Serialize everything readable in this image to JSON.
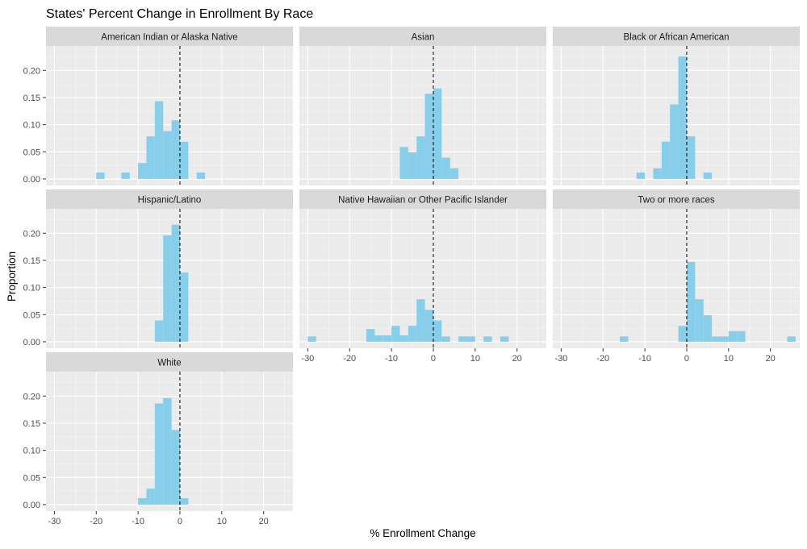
{
  "chart_data": {
    "type": "histogram",
    "title": "States' Percent Change in Enrollment By Race",
    "xlabel": "% Enrollment Change",
    "ylabel": "Proportion",
    "xlim": [
      -32,
      27
    ],
    "ylim": [
      -0.012,
      0.245
    ],
    "xticks": [
      -30,
      -20,
      -10,
      0,
      10,
      20
    ],
    "yticks": [
      0.0,
      0.05,
      0.1,
      0.15,
      0.2
    ],
    "ytick_labels": [
      "0.00",
      "0.05",
      "0.10",
      "0.15",
      "0.20"
    ],
    "bin_width": 2,
    "reference_line_x": 0,
    "bar_color": "#87CEEB",
    "panel_background": "#EBEBEB",
    "strip_background": "#D9D9D9",
    "grid": true,
    "layout": "facet_wrap 3 columns",
    "panels": [
      {
        "label": "American Indian or Alaska Native",
        "bins": [
          {
            "x0": -20,
            "x1": -18,
            "value": 0.0118
          },
          {
            "x0": -14,
            "x1": -12,
            "value": 0.0118
          },
          {
            "x0": -10,
            "x1": -8,
            "value": 0.0294
          },
          {
            "x0": -8,
            "x1": -6,
            "value": 0.0784
          },
          {
            "x0": -6,
            "x1": -4,
            "value": 0.1431
          },
          {
            "x0": -4,
            "x1": -2,
            "value": 0.0882
          },
          {
            "x0": -2,
            "x1": 0,
            "value": 0.1078
          },
          {
            "x0": 0,
            "x1": 2,
            "value": 0.0686
          },
          {
            "x0": 4,
            "x1": 6,
            "value": 0.0118
          }
        ]
      },
      {
        "label": "Asian",
        "bins": [
          {
            "x0": -8,
            "x1": -6,
            "value": 0.0588
          },
          {
            "x0": -6,
            "x1": -4,
            "value": 0.049
          },
          {
            "x0": -4,
            "x1": -2,
            "value": 0.0784
          },
          {
            "x0": -2,
            "x1": 0,
            "value": 0.1569
          },
          {
            "x0": 0,
            "x1": 2,
            "value": 0.1667
          },
          {
            "x0": 2,
            "x1": 4,
            "value": 0.0392
          },
          {
            "x0": 4,
            "x1": 6,
            "value": 0.0196
          }
        ]
      },
      {
        "label": "Black or African American",
        "bins": [
          {
            "x0": -12,
            "x1": -10,
            "value": 0.0118
          },
          {
            "x0": -8,
            "x1": -6,
            "value": 0.0196
          },
          {
            "x0": -6,
            "x1": -4,
            "value": 0.0686
          },
          {
            "x0": -4,
            "x1": -2,
            "value": 0.1373
          },
          {
            "x0": -2,
            "x1": 0,
            "value": 0.2255
          },
          {
            "x0": 0,
            "x1": 2,
            "value": 0.0784
          },
          {
            "x0": 4,
            "x1": 6,
            "value": 0.0118
          }
        ]
      },
      {
        "label": "Hispanic/Latino",
        "bins": [
          {
            "x0": -6,
            "x1": -4,
            "value": 0.0392
          },
          {
            "x0": -4,
            "x1": -2,
            "value": 0.1961
          },
          {
            "x0": -2,
            "x1": 0,
            "value": 0.2157
          },
          {
            "x0": 0,
            "x1": 2,
            "value": 0.1275
          }
        ]
      },
      {
        "label": "Native Hawaiian or Other Pacific Islander",
        "bins": [
          {
            "x0": -30,
            "x1": -28,
            "value": 0.0098
          },
          {
            "x0": -16,
            "x1": -14,
            "value": 0.0235
          },
          {
            "x0": -14,
            "x1": -12,
            "value": 0.0118
          },
          {
            "x0": -12,
            "x1": -10,
            "value": 0.0118
          },
          {
            "x0": -10,
            "x1": -8,
            "value": 0.0294
          },
          {
            "x0": -8,
            "x1": -6,
            "value": 0.0118
          },
          {
            "x0": -6,
            "x1": -4,
            "value": 0.0294
          },
          {
            "x0": -4,
            "x1": -2,
            "value": 0.0784
          },
          {
            "x0": -2,
            "x1": 0,
            "value": 0.0588
          },
          {
            "x0": 0,
            "x1": 2,
            "value": 0.0392
          },
          {
            "x0": 2,
            "x1": 4,
            "value": 0.0098
          },
          {
            "x0": 6,
            "x1": 8,
            "value": 0.0098
          },
          {
            "x0": 8,
            "x1": 10,
            "value": 0.0098
          },
          {
            "x0": 12,
            "x1": 14,
            "value": 0.0098
          },
          {
            "x0": 16,
            "x1": 18,
            "value": 0.0098
          }
        ]
      },
      {
        "label": "Two or more races",
        "bins": [
          {
            "x0": -16,
            "x1": -14,
            "value": 0.0098
          },
          {
            "x0": -2,
            "x1": 0,
            "value": 0.0294
          },
          {
            "x0": 0,
            "x1": 2,
            "value": 0.1471
          },
          {
            "x0": 2,
            "x1": 4,
            "value": 0.0784
          },
          {
            "x0": 4,
            "x1": 6,
            "value": 0.049
          },
          {
            "x0": 6,
            "x1": 8,
            "value": 0.0098
          },
          {
            "x0": 8,
            "x1": 10,
            "value": 0.0098
          },
          {
            "x0": 10,
            "x1": 12,
            "value": 0.0196
          },
          {
            "x0": 12,
            "x1": 14,
            "value": 0.0196
          },
          {
            "x0": 24,
            "x1": 26,
            "value": 0.0098
          }
        ]
      },
      {
        "label": "White",
        "bins": [
          {
            "x0": -10,
            "x1": -8,
            "value": 0.0118
          },
          {
            "x0": -8,
            "x1": -6,
            "value": 0.0294
          },
          {
            "x0": -6,
            "x1": -4,
            "value": 0.1863
          },
          {
            "x0": -4,
            "x1": -2,
            "value": 0.1961
          },
          {
            "x0": -2,
            "x1": 0,
            "value": 0.1373
          },
          {
            "x0": 0,
            "x1": 2,
            "value": 0.0118
          }
        ]
      }
    ]
  }
}
